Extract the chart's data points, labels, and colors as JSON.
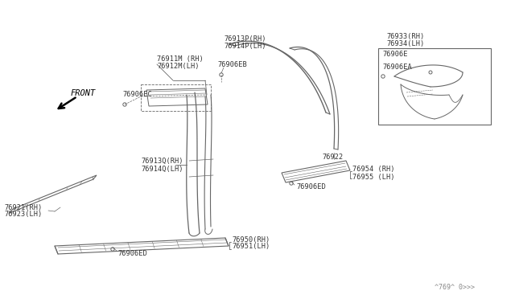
{
  "bg_color": "#ffffff",
  "line_color": "#666666",
  "text_color": "#333333",
  "watermark": "^769^ 0>>>",
  "font_size": 6.2,
  "labels": {
    "76911M_RH": "76911M (RH)",
    "76912M_LH": "76912M(LH)",
    "76906EC": "76906EC",
    "76913P_RH": "76913P(RH)",
    "76914P_LH": "76914P(LH)",
    "76906EB": "76906EB",
    "76933_RH": "76933(RH)",
    "76934_LH": "76934(LH)",
    "76906E": "76906E",
    "76906EA": "76906EA",
    "76922": "76922",
    "76913Q_RH": "76913Q(RH)",
    "76914Q_LH": "76914Q(LH)",
    "76906ED_mid": "76906ED",
    "76954_RH": "76954 (RH)",
    "76955_LH": "76955 (LH)",
    "76921_RH": "76921(RH)",
    "76923_LH": "76923(LH)",
    "76950_RH": "76950(RH)",
    "76951_LH": "76951(LH)",
    "76906ED_bot": "76906ED",
    "FRONT": "FRONT"
  }
}
